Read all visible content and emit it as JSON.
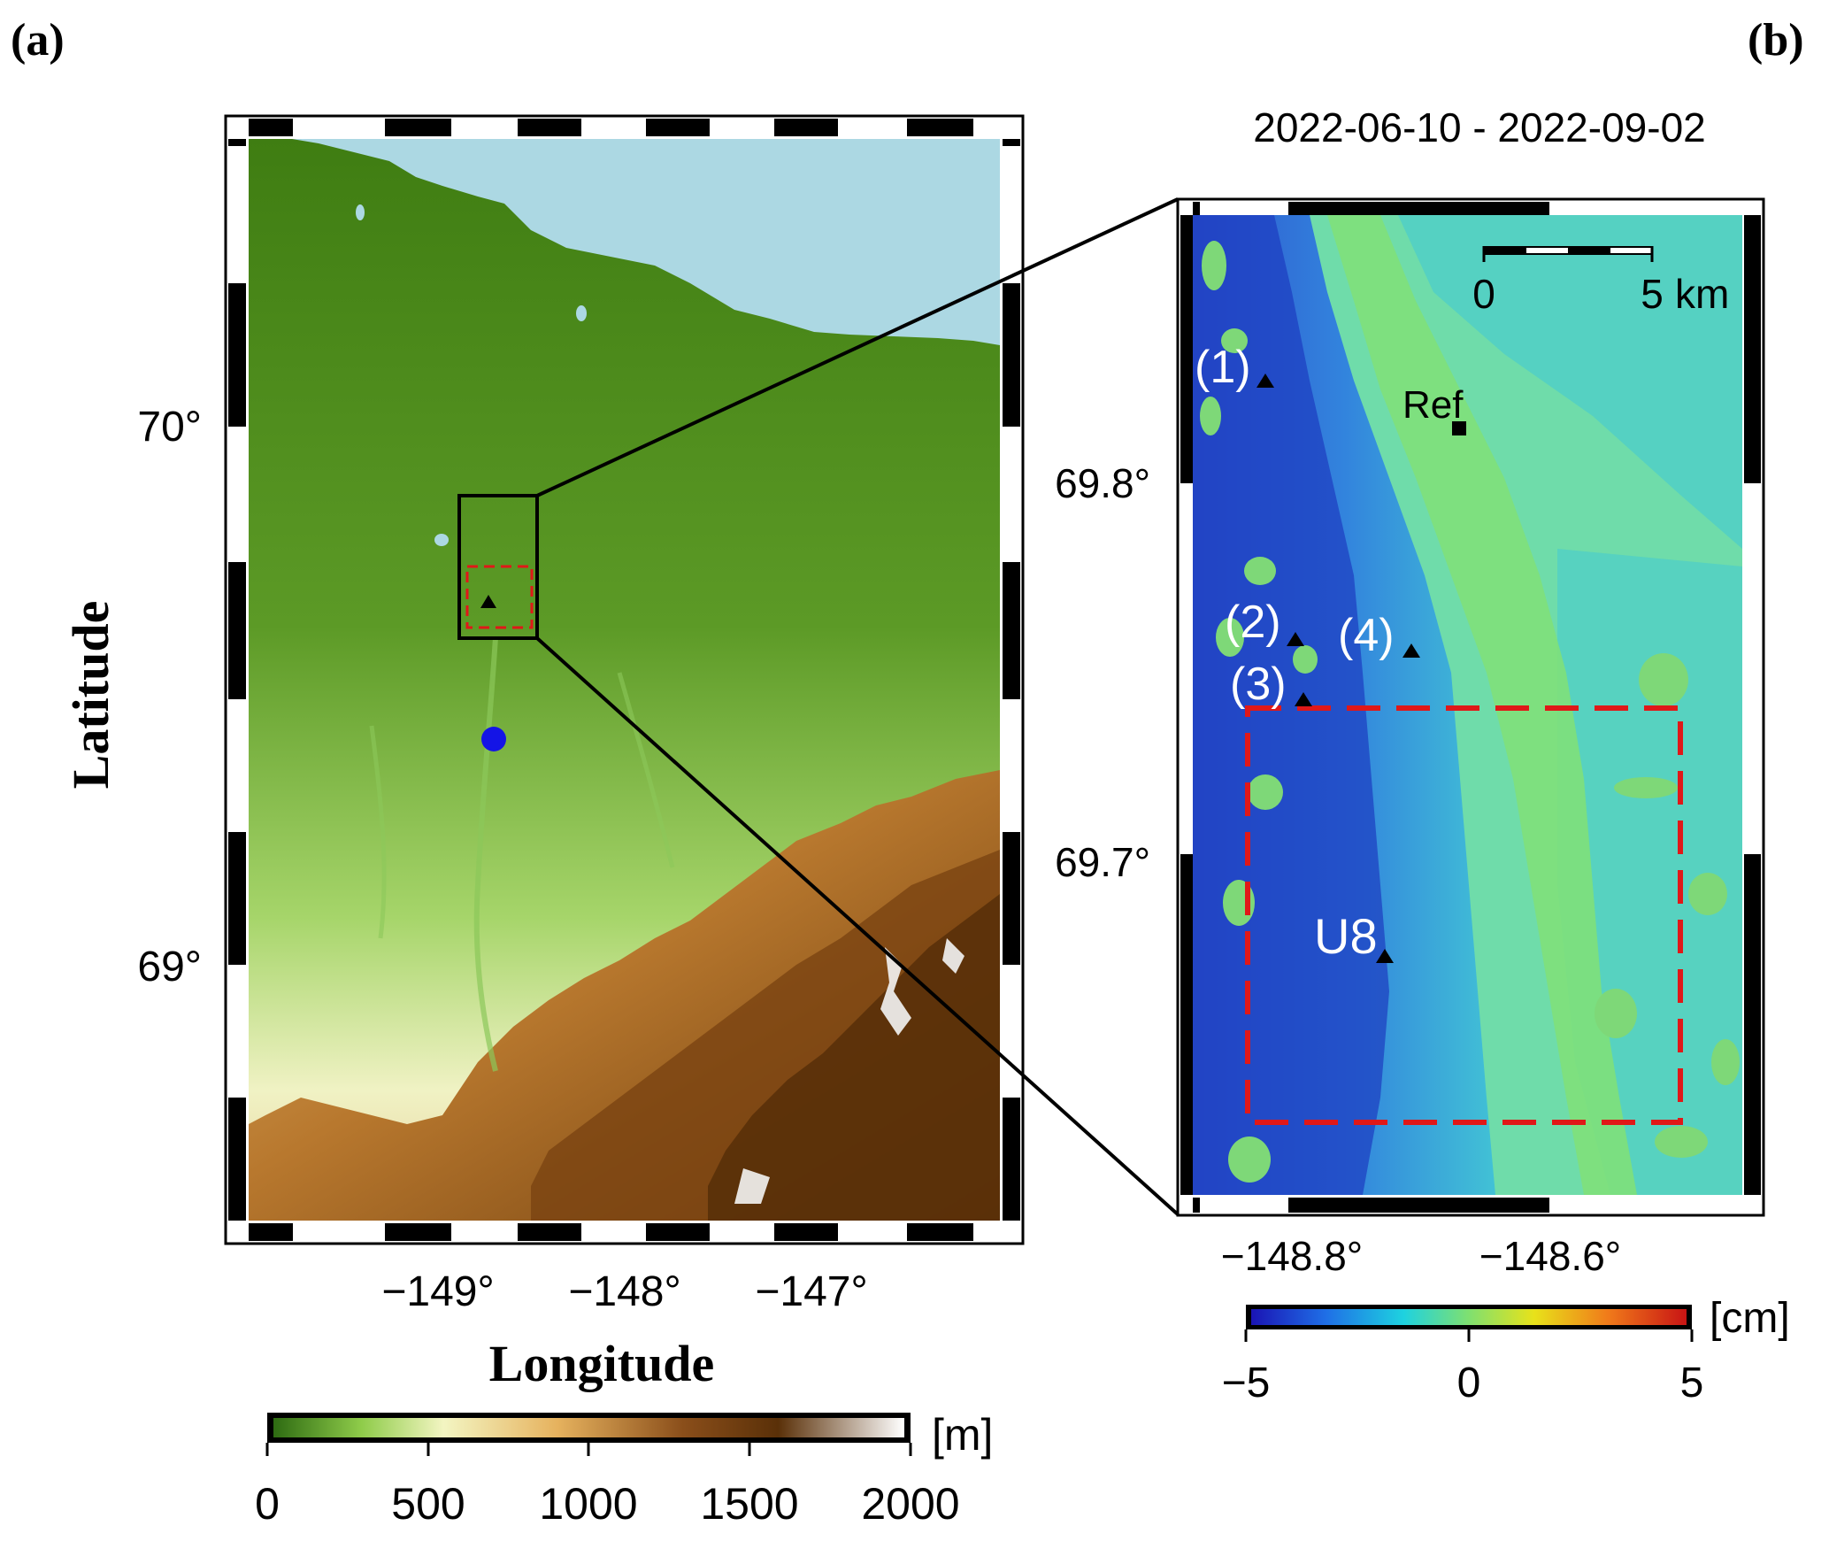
{
  "panel_a": {
    "label": "(a)",
    "lat_ticks": [
      "70°",
      "69°"
    ],
    "lon_ticks": [
      "−149°",
      "−148°",
      "−147°"
    ],
    "xlabel": "Longitude",
    "ylabel": "Latitude",
    "colorbar": {
      "ticks": [
        "0",
        "500",
        "1000",
        "1500",
        "2000"
      ],
      "unit": "[m]",
      "stops": [
        "#2e6b12",
        "#8fcc4a",
        "#f3f5c2",
        "#e6b25e",
        "#8a4e1a",
        "#5a3008",
        "#ffffff"
      ]
    },
    "colors": {
      "ocean": "#acd8e3",
      "lowland": "#4d8a1a",
      "inset_box": "#000000",
      "study_box": "#e01818",
      "blue_marker": "#1414e6"
    }
  },
  "panel_b": {
    "label": "(b)",
    "title": "2022-06-10 - 2022-09-02",
    "lat_ticks": [
      "69.8°",
      "69.7°"
    ],
    "lon_ticks": [
      "−148.8°",
      "−148.6°"
    ],
    "scalebar": {
      "start": "0",
      "end": "5",
      "unit": "km"
    },
    "sites": [
      "(1)",
      "(2)",
      "(3)",
      "(4)",
      "Ref",
      "U8"
    ],
    "colorbar": {
      "ticks": [
        "−5",
        "0",
        "5"
      ],
      "unit": "[cm]",
      "stops": [
        "#1a14b4",
        "#1f6ee6",
        "#1ed2e0",
        "#7fe070",
        "#e8e21a",
        "#f07a1a",
        "#c81414"
      ]
    },
    "colors": {
      "background": "#6fdcaa",
      "subsidence": "#2a5ad8",
      "study_box": "#e01818"
    }
  }
}
